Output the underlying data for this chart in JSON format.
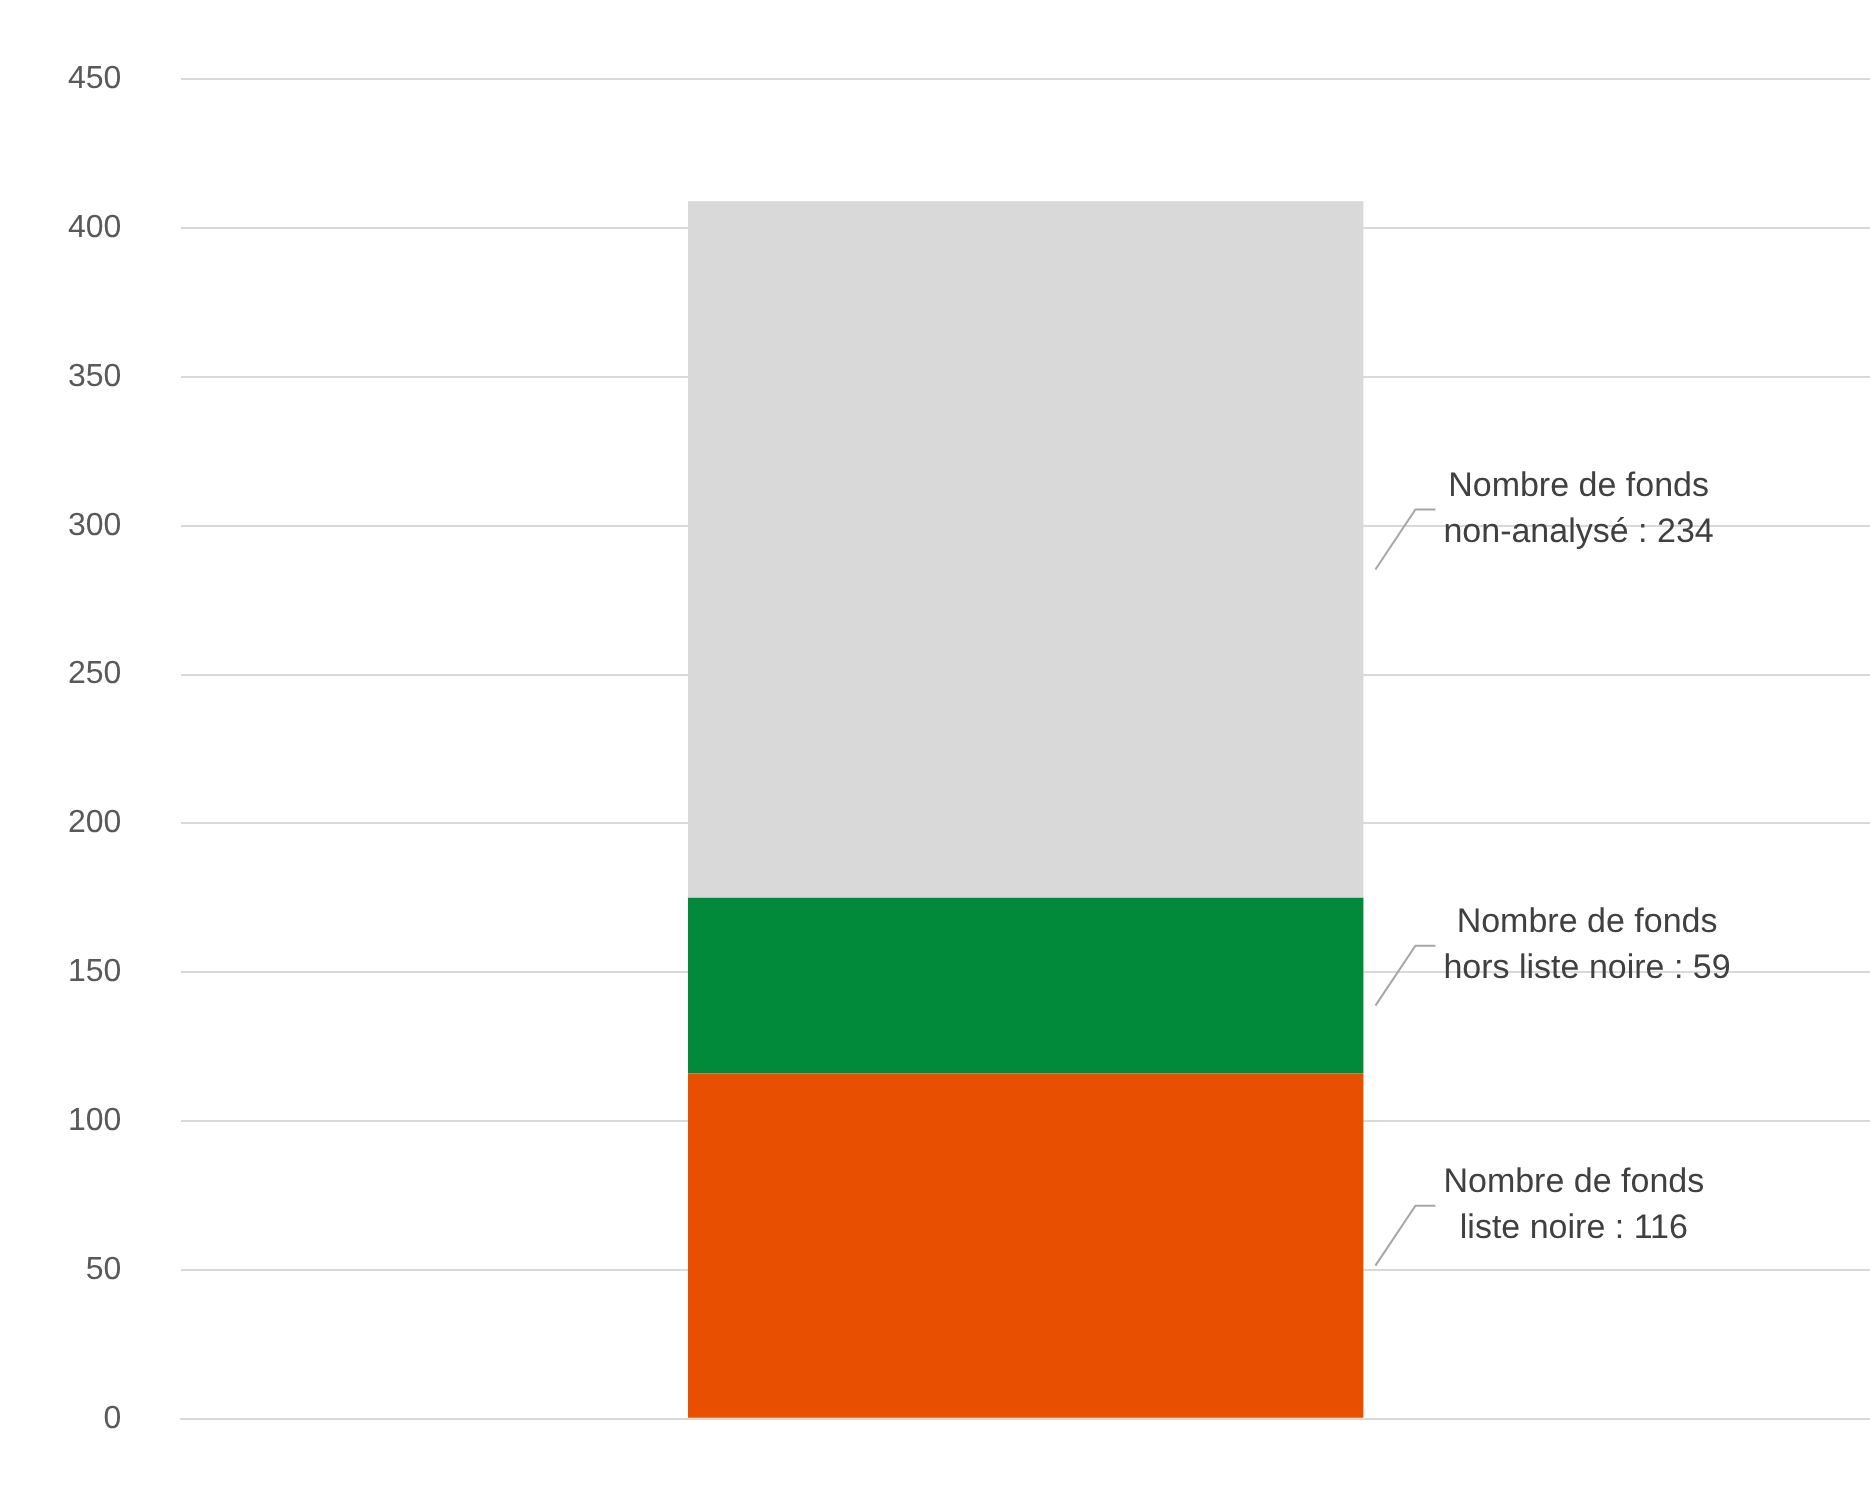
{
  "chart_data": {
    "type": "bar",
    "stacked": true,
    "categories": [
      null
    ],
    "series": [
      {
        "color": "#e85000",
        "values": [
          116
        ],
        "value_labels": [
          "Nombre de fonds liste noire : 116"
        ]
      },
      {
        "color": "#008a3a",
        "values": [
          59
        ],
        "value_labels": [
          "Nombre de fonds hors liste noire : 59"
        ]
      },
      {
        "color": "#d9d9d9",
        "values": [
          234
        ],
        "value_labels": [
          "Nombre de fonds non-analysé : 234"
        ]
      }
    ],
    "ylim": [
      0,
      450
    ],
    "yticks": [
      0,
      50,
      100,
      150,
      200,
      250,
      300,
      350,
      400,
      450
    ],
    "grid": "y",
    "legend": false
  }
}
